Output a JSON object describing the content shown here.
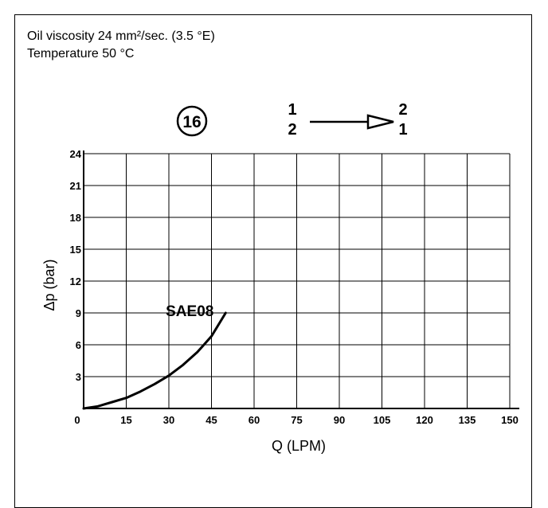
{
  "notes": {
    "line1": "Oil viscosity 24 mm²/sec. (3.5 °E)",
    "line2": "Temperature 50 °C"
  },
  "symbol": {
    "number": "16"
  },
  "flow_direction": {
    "from_top": "1",
    "from_bottom": "2",
    "to_top": "2",
    "to_bottom": "1"
  },
  "chart_data": {
    "type": "line",
    "xlabel": "Q (LPM)",
    "ylabel": "Δp (bar)",
    "xlim": [
      0,
      150
    ],
    "ylim": [
      0,
      24
    ],
    "x_ticks": [
      0,
      15,
      30,
      45,
      60,
      75,
      90,
      105,
      120,
      135,
      150
    ],
    "y_ticks": [
      3,
      6,
      9,
      12,
      15,
      18,
      21,
      24
    ],
    "grid": true,
    "series": [
      {
        "name": "SAE08",
        "x": [
          0,
          5,
          10,
          15,
          20,
          25,
          30,
          35,
          40,
          45,
          50
        ],
        "y": [
          0,
          0.2,
          0.6,
          1.0,
          1.6,
          2.3,
          3.1,
          4.1,
          5.3,
          6.8,
          9.0
        ]
      }
    ]
  }
}
